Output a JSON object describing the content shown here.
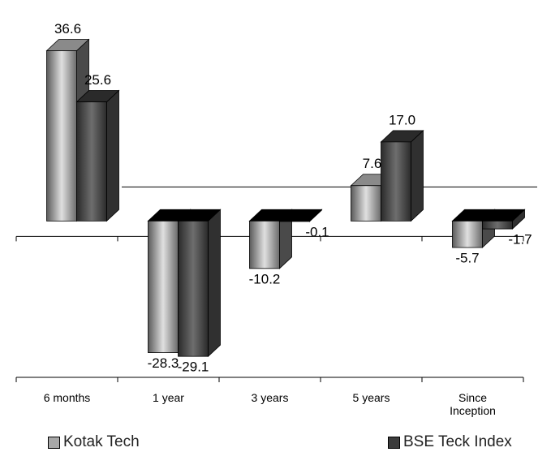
{
  "chart_data": {
    "type": "bar3d",
    "categories": [
      "6 months",
      "1 year",
      "3 years",
      "5 years",
      "Since Inception"
    ],
    "series": [
      {
        "name": "Kotak Tech",
        "color": "#a8a8a8",
        "values": [
          36.6,
          -28.3,
          -10.2,
          7.6,
          -5.7
        ],
        "value_labels": [
          "36.6",
          "-28.3",
          "-10.2",
          "7.6",
          "-5.7"
        ]
      },
      {
        "name": "BSE Teck Index",
        "color": "#3c3c3c",
        "values": [
          25.6,
          -29.1,
          -0.1,
          17.0,
          -1.7
        ],
        "value_labels": [
          "25.6",
          "-29.1",
          "-0.1",
          "17.0",
          "-1.7"
        ]
      }
    ],
    "ylim": [
      -35,
      40
    ]
  }
}
